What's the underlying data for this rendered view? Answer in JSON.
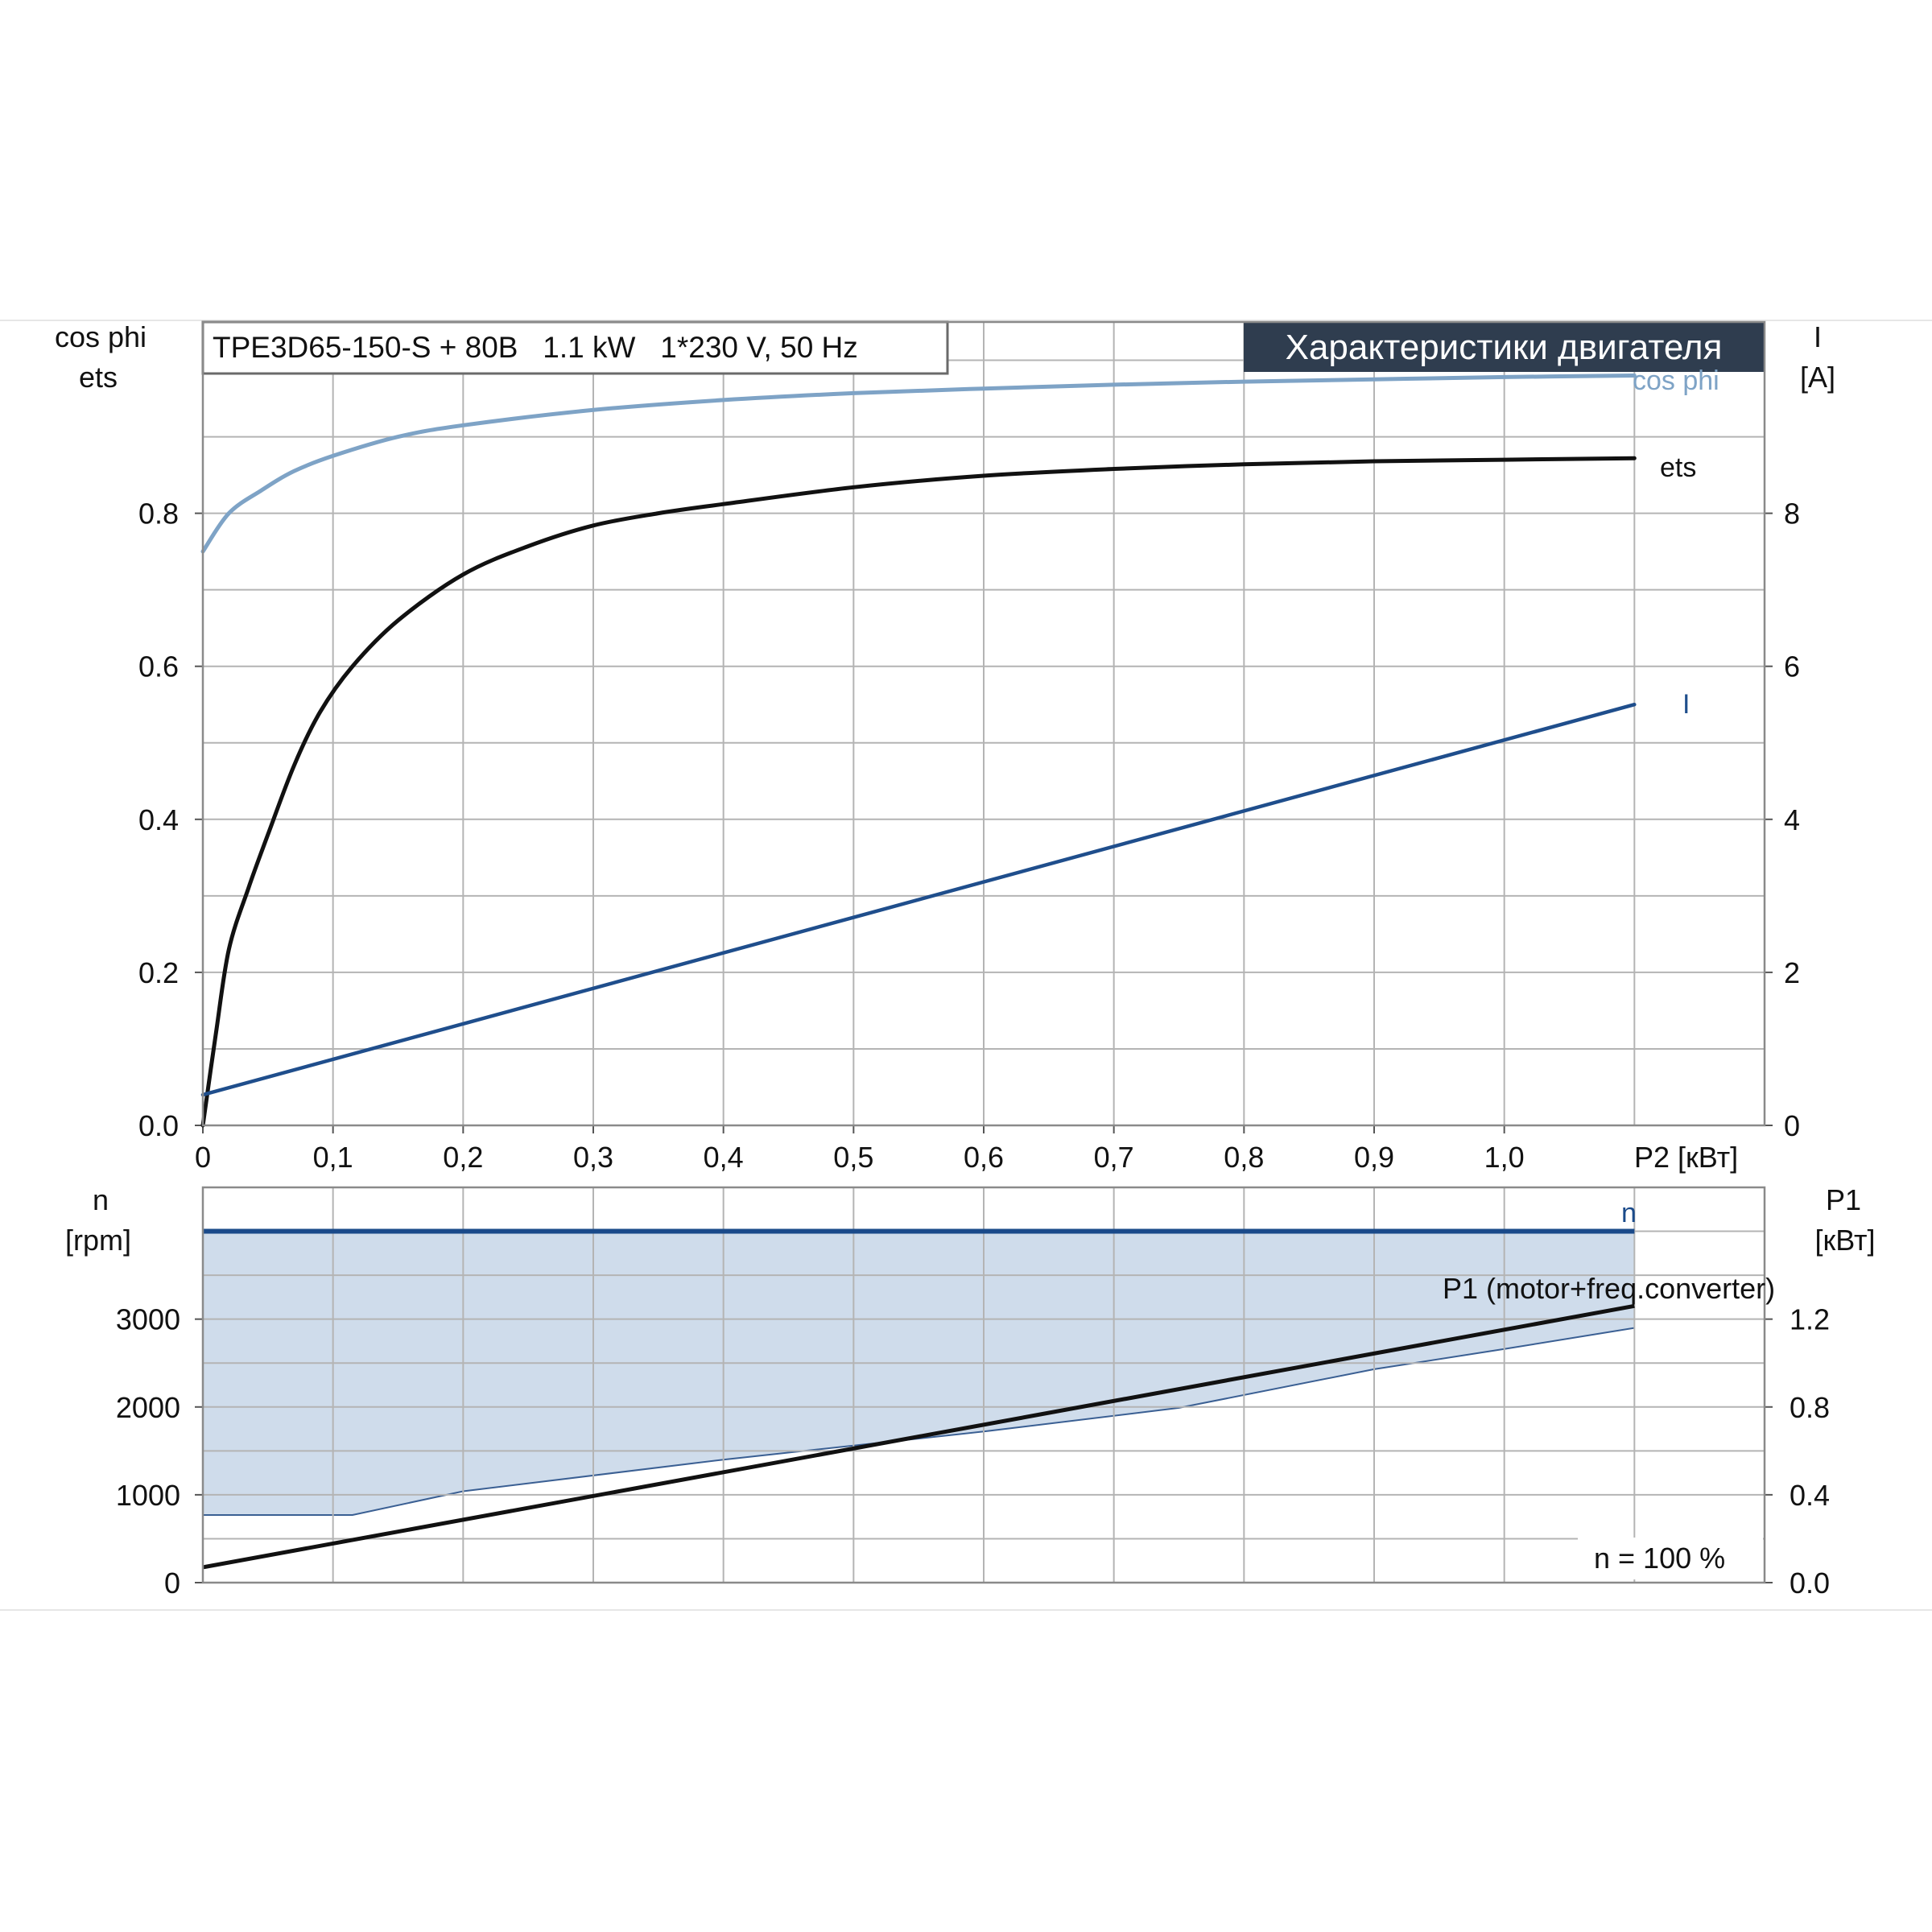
{
  "model_label": "TPE3D65-150-S + 80B   1.1 kW   1*230 V, 50 Hz",
  "banner_title": "Характеристики двигателя",
  "colors": {
    "cosphi": "#7ea3c6",
    "ets": "#111111",
    "current": "#1f4e8c",
    "speed": "#1a4a8a",
    "p1": "#111111",
    "band_fill": "#cfdceb",
    "band_edge": "#3a5f93",
    "banner_bg": "#2f3d4f"
  },
  "chart_data": [
    {
      "type": "line",
      "panel": "top",
      "x": {
        "label": "P2 [кВт]",
        "range": [
          0,
          1.2
        ],
        "ticks": [
          "0",
          "0,1",
          "0,2",
          "0,3",
          "0,4",
          "0,5",
          "0,6",
          "0,7",
          "0,8",
          "0,9",
          "1,0"
        ]
      },
      "y_left": {
        "label_line1": "cos phi",
        "label_line2": "ets",
        "range": [
          0,
          1.05
        ],
        "ticks": [
          "0.0",
          "0.2",
          "0.4",
          "0.6",
          "0.8"
        ]
      },
      "y_right": {
        "label_line1": "I",
        "label_line2": "[A]",
        "range": [
          0,
          10.5
        ],
        "ticks": [
          "0",
          "2",
          "4",
          "6",
          "8"
        ]
      },
      "grid": true,
      "series": [
        {
          "name": "cos phi",
          "axis": "left",
          "x": [
            0,
            0.02,
            0.045,
            0.07,
            0.1,
            0.15,
            0.2,
            0.3,
            0.4,
            0.5,
            0.6,
            0.7,
            0.8,
            0.9,
            1.0,
            1.1
          ],
          "y": [
            0.75,
            0.8,
            0.83,
            0.855,
            0.875,
            0.9,
            0.915,
            0.935,
            0.948,
            0.957,
            0.963,
            0.968,
            0.972,
            0.975,
            0.978,
            0.98
          ]
        },
        {
          "name": "ets",
          "axis": "left",
          "x": [
            0,
            0.01,
            0.02,
            0.035,
            0.05,
            0.07,
            0.09,
            0.115,
            0.15,
            0.2,
            0.25,
            0.3,
            0.35,
            0.4,
            0.5,
            0.6,
            0.7,
            0.8,
            0.9,
            1.0,
            1.1
          ],
          "y": [
            0,
            0.12,
            0.23,
            0.31,
            0.38,
            0.47,
            0.54,
            0.6,
            0.66,
            0.72,
            0.757,
            0.784,
            0.8,
            0.812,
            0.834,
            0.849,
            0.858,
            0.864,
            0.868,
            0.87,
            0.872
          ]
        },
        {
          "name": "I",
          "axis": "right",
          "x": [
            0,
            1.1
          ],
          "y": [
            0.4,
            5.5
          ]
        }
      ]
    },
    {
      "type": "line",
      "panel": "bottom",
      "x": {
        "range": [
          0,
          1.2
        ]
      },
      "y_left": {
        "label_line1": "n",
        "label_line2": "[rpm]",
        "range": [
          0,
          4500
        ],
        "ticks": [
          "0",
          "1000",
          "2000",
          "3000"
        ]
      },
      "y_right": {
        "label_line1": "P1",
        "label_line2": "[кВт]",
        "range": [
          0,
          1.8
        ],
        "ticks": [
          "0.0",
          "0.4",
          "0.8",
          "1.2"
        ]
      },
      "grid": true,
      "annotation": "n = 100 %",
      "series": [
        {
          "name": "n",
          "axis": "left",
          "x": [
            0,
            1.1
          ],
          "y": [
            4000,
            4000
          ]
        },
        {
          "name": "P1 (motor+freq.converter)",
          "axis": "right",
          "x": [
            0,
            1.1
          ],
          "y": [
            0.07,
            1.26
          ]
        }
      ],
      "operating_range_band": {
        "upper_rpm": 4000,
        "lower_x": [
          0,
          0.115,
          0.2,
          0.4,
          0.6,
          0.75,
          0.9,
          1.0,
          1.1
        ],
        "lower_rpm": [
          770,
          770,
          1040,
          1400,
          1720,
          1990,
          2430,
          2660,
          2900
        ]
      }
    }
  ]
}
